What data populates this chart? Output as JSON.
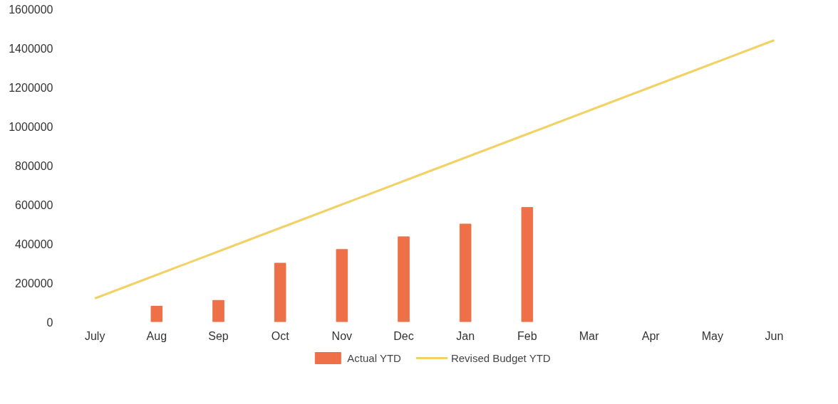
{
  "chart_data": {
    "type": "bar",
    "categories": [
      "July",
      "Aug",
      "Sep",
      "Oct",
      "Nov",
      "Dec",
      "Jan",
      "Feb",
      "Mar",
      "Apr",
      "May",
      "Jun"
    ],
    "series": [
      {
        "name": "Actual YTD",
        "color": "#ed7048",
        "values": [
          null,
          80000,
          110000,
          300000,
          370000,
          435000,
          500000,
          585000,
          null,
          null,
          null,
          null
        ]
      },
      {
        "name": "Revised Budget YTD",
        "type": "line",
        "color": "#f2d165",
        "values": [
          120000,
          240000,
          360000,
          480000,
          600000,
          720000,
          840000,
          960000,
          1080000,
          1200000,
          1320000,
          1440000
        ]
      }
    ],
    "ylim": [
      0,
      1600000
    ],
    "yticks": [
      0,
      200000,
      400000,
      600000,
      800000,
      1000000,
      1200000,
      1400000,
      1600000
    ],
    "grid": false,
    "legend": "bottom"
  }
}
